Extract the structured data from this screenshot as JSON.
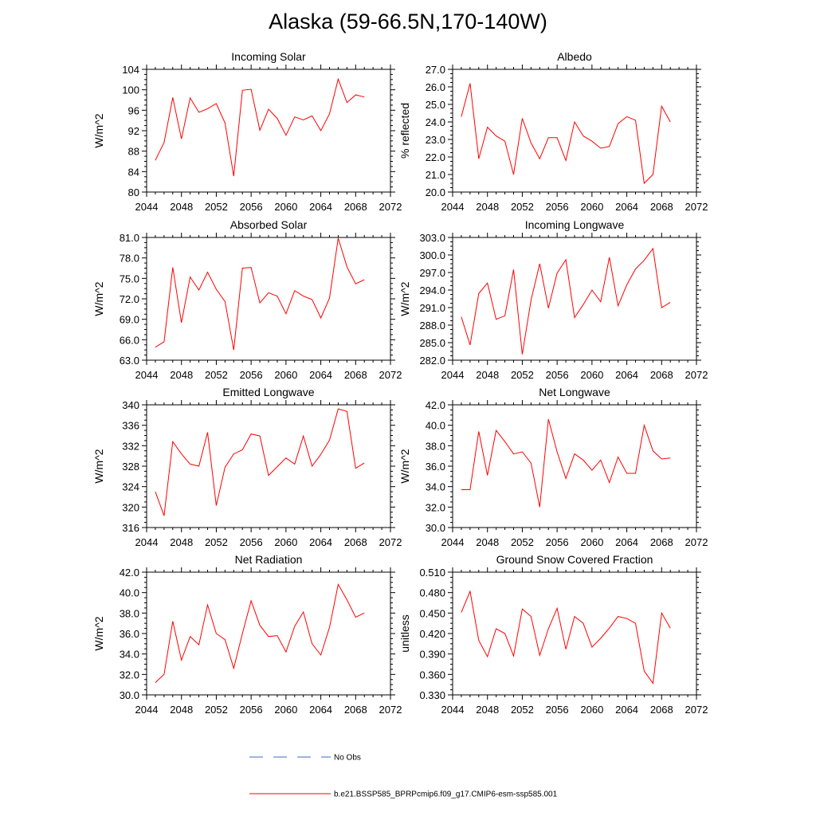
{
  "title": "Alaska (59-66.5N,170-140W)",
  "colors": {
    "model": "#ff0000",
    "obs": "#4466cc",
    "axis": "#000000"
  },
  "legend": [
    {
      "label": "No Obs",
      "style": "dashed",
      "color": "#4466cc"
    },
    {
      "label": "b.e21.BSSP585_BPRPcmip6.f09_g17.CMIP6-esm-ssp585.001",
      "style": "solid",
      "color": "#ff0000"
    }
  ],
  "chart_data": [
    {
      "type": "line",
      "title": "Incoming Solar",
      "ylabel": "W/m^2",
      "xlim": [
        2044,
        2072
      ],
      "ylim": [
        80,
        104
      ],
      "xtick_step": 4,
      "yticks_decimals": 0,
      "yticks": [
        80,
        84,
        88,
        92,
        96,
        100,
        104
      ],
      "x": [
        2045,
        2046,
        2047,
        2048,
        2049,
        2050,
        2051,
        2052,
        2053,
        2054,
        2055,
        2056,
        2057,
        2058,
        2059,
        2060,
        2061,
        2062,
        2063,
        2064,
        2065,
        2066,
        2067,
        2068,
        2069
      ],
      "series": [
        {
          "values": [
            86.2,
            89.7,
            98.5,
            90.4,
            98.4,
            95.6,
            96.3,
            97.3,
            93.5,
            83.1,
            99.9,
            100.1,
            92.1,
            96.2,
            94.4,
            91.1,
            94.7,
            94.1,
            94.9,
            92.0,
            95.3,
            102.1,
            97.5,
            99.0,
            98.6
          ]
        }
      ]
    },
    {
      "type": "line",
      "title": "Albedo",
      "ylabel": "% reflected",
      "xlim": [
        2044,
        2072
      ],
      "ylim": [
        20.0,
        27.0
      ],
      "xtick_step": 4,
      "yticks_decimals": 1,
      "yticks": [
        20.0,
        21.0,
        22.0,
        23.0,
        24.0,
        25.0,
        26.0,
        27.0
      ],
      "x": [
        2045,
        2046,
        2047,
        2048,
        2049,
        2050,
        2051,
        2052,
        2053,
        2054,
        2055,
        2056,
        2057,
        2058,
        2059,
        2060,
        2061,
        2062,
        2063,
        2064,
        2065,
        2066,
        2067,
        2068,
        2069
      ],
      "series": [
        {
          "values": [
            24.3,
            26.2,
            21.9,
            23.7,
            23.2,
            22.9,
            21.0,
            24.2,
            22.8,
            21.9,
            23.1,
            23.1,
            21.8,
            24.0,
            23.2,
            22.9,
            22.5,
            22.6,
            23.9,
            24.3,
            24.1,
            20.5,
            21.0,
            24.9,
            24.0
          ]
        }
      ]
    },
    {
      "type": "line",
      "title": "Absorbed Solar",
      "ylabel": "W/m^2",
      "xlim": [
        2044,
        2072
      ],
      "ylim": [
        63.0,
        81.0
      ],
      "xtick_step": 4,
      "yticks_decimals": 1,
      "yticks": [
        63.0,
        66.0,
        69.0,
        72.0,
        75.0,
        78.0,
        81.0
      ],
      "x": [
        2045,
        2046,
        2047,
        2048,
        2049,
        2050,
        2051,
        2052,
        2053,
        2054,
        2055,
        2056,
        2057,
        2058,
        2059,
        2060,
        2061,
        2062,
        2063,
        2064,
        2065,
        2066,
        2067,
        2068,
        2069
      ],
      "series": [
        {
          "values": [
            64.9,
            65.7,
            76.6,
            68.5,
            75.2,
            73.3,
            75.9,
            73.4,
            71.6,
            64.5,
            76.5,
            76.6,
            71.4,
            72.9,
            72.4,
            69.8,
            73.2,
            72.4,
            71.9,
            69.2,
            72.1,
            80.9,
            76.7,
            74.2,
            74.8
          ]
        }
      ]
    },
    {
      "type": "line",
      "title": "Incoming Longwave",
      "ylabel": "W/m^2",
      "xlim": [
        2044,
        2072
      ],
      "ylim": [
        282.0,
        303.0
      ],
      "xtick_step": 4,
      "yticks_decimals": 1,
      "yticks": [
        282.0,
        285.0,
        288.0,
        291.0,
        294.0,
        297.0,
        300.0,
        303.0
      ],
      "x": [
        2045,
        2046,
        2047,
        2048,
        2049,
        2050,
        2051,
        2052,
        2053,
        2054,
        2055,
        2056,
        2057,
        2058,
        2059,
        2060,
        2061,
        2062,
        2063,
        2064,
        2065,
        2066,
        2067,
        2068,
        2069
      ],
      "series": [
        {
          "values": [
            289.4,
            284.6,
            293.4,
            295.2,
            289.0,
            289.6,
            297.5,
            283.0,
            292.3,
            298.5,
            290.9,
            296.9,
            299.2,
            289.3,
            291.5,
            294.0,
            292.0,
            299.6,
            291.3,
            294.9,
            297.6,
            299.1,
            301.1,
            291.0,
            291.9
          ]
        }
      ]
    },
    {
      "type": "line",
      "title": "Emitted Longwave",
      "ylabel": "W/m^2",
      "xlim": [
        2044,
        2072
      ],
      "ylim": [
        316,
        340
      ],
      "xtick_step": 4,
      "yticks_decimals": 0,
      "yticks": [
        316,
        320,
        324,
        328,
        332,
        336,
        340
      ],
      "x": [
        2045,
        2046,
        2047,
        2048,
        2049,
        2050,
        2051,
        2052,
        2053,
        2054,
        2055,
        2056,
        2057,
        2058,
        2059,
        2060,
        2061,
        2062,
        2063,
        2064,
        2065,
        2066,
        2067,
        2068,
        2069
      ],
      "series": [
        {
          "values": [
            323.0,
            318.3,
            332.8,
            330.4,
            328.4,
            328.0,
            334.6,
            320.3,
            327.8,
            330.4,
            331.2,
            334.3,
            333.9,
            326.2,
            327.9,
            329.6,
            328.4,
            333.9,
            328.0,
            330.3,
            333.1,
            339.2,
            338.7,
            327.6,
            328.6
          ]
        }
      ]
    },
    {
      "type": "line",
      "title": "Net Longwave",
      "ylabel": "W/m^2",
      "xlim": [
        2044,
        2072
      ],
      "ylim": [
        30.0,
        42.0
      ],
      "xtick_step": 4,
      "yticks_decimals": 1,
      "yticks": [
        30.0,
        32.0,
        34.0,
        36.0,
        38.0,
        40.0,
        42.0
      ],
      "x": [
        2045,
        2046,
        2047,
        2048,
        2049,
        2050,
        2051,
        2052,
        2053,
        2054,
        2055,
        2056,
        2057,
        2058,
        2059,
        2060,
        2061,
        2062,
        2063,
        2064,
        2065,
        2066,
        2067,
        2068,
        2069
      ],
      "series": [
        {
          "values": [
            33.7,
            33.7,
            39.4,
            35.1,
            39.5,
            38.4,
            37.2,
            37.4,
            36.3,
            32.0,
            40.6,
            37.4,
            34.8,
            37.2,
            36.6,
            35.6,
            36.6,
            34.4,
            36.9,
            35.3,
            35.3,
            40.0,
            37.5,
            36.7,
            36.8
          ]
        }
      ]
    },
    {
      "type": "line",
      "title": "Net Radiation",
      "ylabel": "W/m^2",
      "xlim": [
        2044,
        2072
      ],
      "ylim": [
        30.0,
        42.0
      ],
      "xtick_step": 4,
      "yticks_decimals": 1,
      "yticks": [
        30.0,
        32.0,
        34.0,
        36.0,
        38.0,
        40.0,
        42.0
      ],
      "x": [
        2045,
        2046,
        2047,
        2048,
        2049,
        2050,
        2051,
        2052,
        2053,
        2054,
        2055,
        2056,
        2057,
        2058,
        2059,
        2060,
        2061,
        2062,
        2063,
        2064,
        2065,
        2066,
        2067,
        2068,
        2069
      ],
      "series": [
        {
          "values": [
            31.2,
            32.0,
            37.2,
            33.4,
            35.7,
            34.9,
            38.8,
            36.0,
            35.4,
            32.6,
            36.0,
            39.2,
            36.8,
            35.7,
            35.8,
            34.2,
            36.7,
            38.1,
            35.0,
            33.9,
            36.6,
            40.8,
            39.3,
            37.6,
            38.0
          ]
        }
      ]
    },
    {
      "type": "line",
      "title": "Ground Snow Covered Fraction",
      "ylabel": "unitless",
      "xlim": [
        2044,
        2072
      ],
      "ylim": [
        0.33,
        0.51
      ],
      "xtick_step": 4,
      "yticks_decimals": 3,
      "yticks": [
        0.33,
        0.36,
        0.39,
        0.42,
        0.45,
        0.48,
        0.51
      ],
      "x": [
        2045,
        2046,
        2047,
        2048,
        2049,
        2050,
        2051,
        2052,
        2053,
        2054,
        2055,
        2056,
        2057,
        2058,
        2059,
        2060,
        2061,
        2062,
        2063,
        2064,
        2065,
        2066,
        2067,
        2068,
        2069
      ],
      "series": [
        {
          "values": [
            0.451,
            0.482,
            0.41,
            0.386,
            0.427,
            0.42,
            0.387,
            0.456,
            0.445,
            0.388,
            0.427,
            0.457,
            0.397,
            0.445,
            0.435,
            0.4,
            0.413,
            0.428,
            0.445,
            0.442,
            0.435,
            0.365,
            0.347,
            0.45,
            0.428
          ]
        }
      ]
    }
  ]
}
